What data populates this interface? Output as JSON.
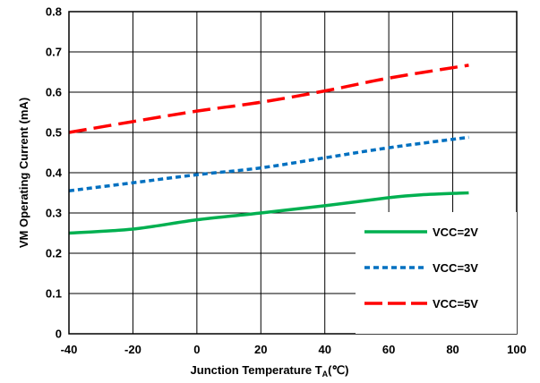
{
  "chart_data": {
    "type": "line",
    "title": "",
    "xlabel": "Junction Temperature T",
    "xlabel_subscript": "A",
    "xlabel_suffix": "(℃)",
    "ylabel": "VM Operating Current (mA)",
    "xlim": [
      -40,
      100
    ],
    "ylim": [
      0,
      0.8
    ],
    "x_ticks": [
      "-40",
      "-20",
      "0",
      "20",
      "40",
      "60",
      "80",
      "100"
    ],
    "y_ticks": [
      "0",
      "0.1",
      "0.2",
      "0.3",
      "0.4",
      "0.5",
      "0.6",
      "0.7",
      "0.8"
    ],
    "grid": true,
    "legend_position": "bottom-right",
    "series": [
      {
        "name": "VCC=2V",
        "color": "#00b050",
        "style": "solid",
        "x": [
          -40,
          -20,
          0,
          20,
          40,
          60,
          70,
          85
        ],
        "y": [
          0.25,
          0.26,
          0.283,
          0.3,
          0.318,
          0.338,
          0.345,
          0.35
        ]
      },
      {
        "name": "VCC=3V",
        "color": "#0070c0",
        "style": "dotted",
        "x": [
          -40,
          -20,
          0,
          20,
          40,
          60,
          85
        ],
        "y": [
          0.355,
          0.375,
          0.395,
          0.412,
          0.437,
          0.462,
          0.488
        ]
      },
      {
        "name": "VCC=5V",
        "color": "#ff0000",
        "style": "dashed",
        "x": [
          -40,
          -20,
          0,
          20,
          40,
          60,
          85
        ],
        "y": [
          0.5,
          0.527,
          0.553,
          0.575,
          0.603,
          0.635,
          0.667
        ]
      }
    ]
  }
}
